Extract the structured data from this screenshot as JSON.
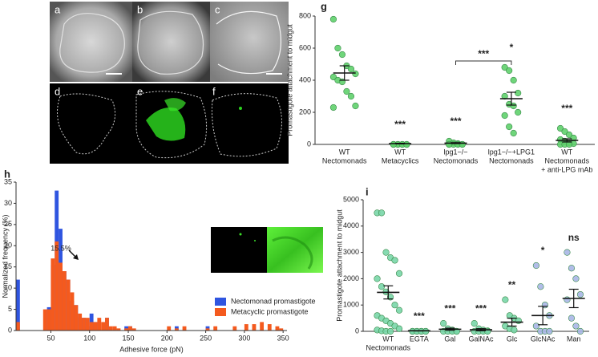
{
  "images": {
    "labels": [
      "a",
      "b",
      "c",
      "d",
      "e",
      "f"
    ]
  },
  "chart_data": [
    {
      "type": "dot",
      "panel": "g",
      "ylabel": "Promastigote attachment to midgut",
      "ylim": [
        0,
        800
      ],
      "yticks": [
        0,
        200,
        400,
        600,
        800
      ],
      "categories": [
        [
          "WT",
          "Nectomonads"
        ],
        [
          "WT",
          "Metacyclics"
        ],
        [
          "lpg1−/−",
          "Nectomonads"
        ],
        [
          "lpg1−/−+LPG1",
          "Nectomonads"
        ],
        [
          "WT",
          "Nectomonads",
          "+ anti-LPG mAb"
        ]
      ],
      "colors": [
        "#5fd06c",
        "#5fd06c",
        "#5fd06c",
        "#5fd06c",
        "#5fd06c"
      ],
      "points": [
        [
          780,
          600,
          560,
          490,
          470,
          440,
          420,
          400,
          390,
          330,
          300,
          240,
          230
        ],
        [
          0,
          0,
          0,
          0,
          0,
          0,
          0,
          0,
          0
        ],
        [
          20,
          10,
          5,
          0,
          0,
          0,
          0,
          0,
          0
        ],
        [
          480,
          460,
          400,
          320,
          300,
          250,
          240,
          200,
          180,
          110,
          70
        ],
        [
          100,
          80,
          60,
          40,
          30,
          20,
          10,
          5,
          0,
          0,
          0
        ]
      ],
      "means": [
        445,
        5,
        8,
        285,
        25
      ],
      "sems": [
        45,
        2,
        3,
        40,
        10
      ],
      "annotations": [
        null,
        "***",
        "***",
        "*",
        "***"
      ],
      "bracket": {
        "label": "***"
      }
    },
    {
      "type": "histogram",
      "panel": "h",
      "xlabel": "Adhesive force (pN)",
      "ylabel": "Normalized frequency (%)",
      "xlim": [
        5,
        355
      ],
      "ylim": [
        0,
        35
      ],
      "xticks": [
        50,
        100,
        150,
        200,
        250,
        300,
        350
      ],
      "yticks": [
        0,
        5,
        10,
        15,
        20,
        25,
        30,
        35
      ],
      "bins": [
        5,
        10,
        15,
        20,
        25,
        30,
        35,
        40,
        45,
        50,
        55,
        60,
        65,
        70,
        75,
        80,
        85,
        90,
        95,
        100,
        105,
        110,
        115,
        120,
        125,
        130,
        135,
        140,
        145,
        150,
        155,
        160,
        165,
        170,
        175,
        180,
        185,
        190,
        195,
        200,
        205,
        210,
        215,
        220,
        225,
        230,
        235,
        240,
        245,
        250,
        255,
        260,
        265,
        270,
        275,
        280,
        285,
        290,
        295,
        300,
        305,
        310,
        315,
        320,
        325,
        330,
        335,
        340,
        345,
        350,
        355
      ],
      "series": [
        {
          "name": "Nectomonad promastigote",
          "color": "#2f55e0",
          "values": [
            12,
            0,
            0,
            0,
            0,
            0,
            0,
            0,
            5.5,
            15.5,
            33,
            24,
            14,
            12,
            7,
            6,
            3,
            3,
            1,
            4,
            2,
            0,
            0,
            3,
            0,
            0,
            0,
            0,
            1,
            1,
            0,
            0,
            0,
            0,
            0,
            0,
            0,
            0,
            0,
            0,
            0,
            1,
            0,
            0,
            0,
            0,
            0,
            0,
            0,
            1,
            0,
            0,
            0,
            0,
            0,
            0,
            0,
            0,
            0,
            0,
            0,
            0,
            0,
            0,
            0,
            0,
            0,
            0,
            0,
            0
          ]
        },
        {
          "name": "Metacyclic promastigote",
          "color": "#f45a1e",
          "values": [
            2,
            0,
            0,
            0,
            0,
            0,
            0,
            5,
            5,
            17,
            21,
            16,
            14,
            12,
            9,
            6,
            4,
            3,
            3,
            2,
            2,
            3,
            2,
            3,
            1,
            1,
            0.5,
            0,
            0.5,
            1,
            0.5,
            0,
            0,
            0,
            0,
            0,
            0,
            0,
            0,
            1,
            0,
            0.5,
            0,
            1,
            0,
            0,
            0,
            0,
            0,
            0.5,
            0,
            1,
            0,
            0,
            0,
            0,
            1,
            0,
            0,
            1.5,
            0,
            1.5,
            0,
            2,
            0,
            1.5,
            0,
            1,
            0.5,
            0
          ]
        }
      ],
      "annotation": "15.5%",
      "legend": "lower right"
    },
    {
      "type": "dot",
      "panel": "i",
      "ylabel": "Promastigote attachment to midgut",
      "ylim": [
        0,
        5000
      ],
      "yticks": [
        0,
        1000,
        2000,
        3000,
        4000,
        5000
      ],
      "categories": [
        [
          "WT",
          "Nectomonads"
        ],
        [
          "EGTA"
        ],
        [
          "Gal"
        ],
        [
          "GalNAc"
        ],
        [
          "Glc"
        ],
        [
          "GlcNAc"
        ],
        [
          "Man"
        ]
      ],
      "colors": [
        "#79d6a9",
        "#79d6a9",
        "#79d6a9",
        "#79d6a9",
        "#79d6a9",
        "#a9b6e6",
        "#a9b6e6"
      ],
      "points": [
        [
          4500,
          4500,
          3000,
          2800,
          2700,
          2200,
          2000,
          1700,
          1500,
          1300,
          1000,
          800,
          600,
          500,
          400,
          300,
          200,
          100,
          50,
          20,
          0,
          0
        ],
        [
          0,
          0,
          0,
          0,
          0,
          0,
          0,
          0
        ],
        [
          300,
          100,
          50,
          0,
          0,
          0,
          0,
          0
        ],
        [
          300,
          100,
          50,
          20,
          0,
          0,
          0,
          0
        ],
        [
          1200,
          600,
          500,
          400,
          200,
          100,
          50
        ],
        [
          2500,
          1700,
          1000,
          600,
          200,
          0,
          0,
          0
        ],
        [
          3000,
          2400,
          2000,
          1400,
          1200,
          500,
          200,
          0
        ]
      ],
      "means": [
        1480,
        20,
        80,
        60,
        350,
        600,
        1250
      ],
      "sems": [
        250,
        5,
        40,
        40,
        150,
        350,
        350
      ],
      "annotations": [
        null,
        "***",
        "***",
        "***",
        "**",
        "*",
        "ns"
      ]
    }
  ]
}
